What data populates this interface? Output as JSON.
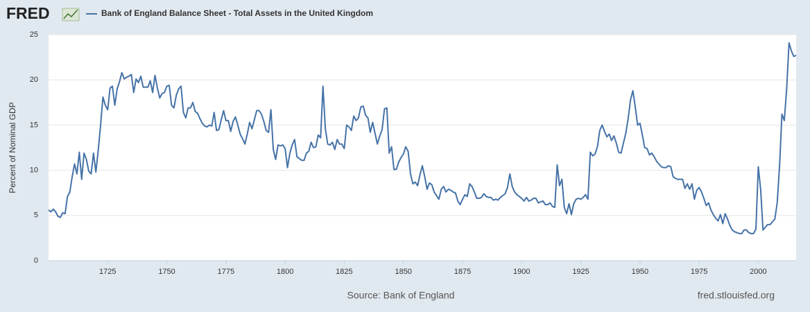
{
  "logo": "FRED",
  "chart_data": {
    "type": "line",
    "ylabel": "Percent of Nominal GDP",
    "source": "Source: Bank of England",
    "credit": "fred.stlouisfed.org",
    "x": [
      1700,
      1701,
      1702,
      1703,
      1704,
      1705,
      1706,
      1707,
      1708,
      1709,
      1710,
      1711,
      1712,
      1713,
      1714,
      1715,
      1716,
      1717,
      1718,
      1719,
      1720,
      1721,
      1722,
      1723,
      1724,
      1725,
      1726,
      1727,
      1728,
      1729,
      1730,
      1731,
      1732,
      1733,
      1734,
      1735,
      1736,
      1737,
      1738,
      1739,
      1740,
      1741,
      1742,
      1743,
      1744,
      1745,
      1746,
      1747,
      1748,
      1749,
      1750,
      1751,
      1752,
      1753,
      1754,
      1755,
      1756,
      1757,
      1758,
      1759,
      1760,
      1761,
      1762,
      1763,
      1764,
      1765,
      1766,
      1767,
      1768,
      1769,
      1770,
      1771,
      1772,
      1773,
      1774,
      1775,
      1776,
      1777,
      1778,
      1779,
      1780,
      1781,
      1782,
      1783,
      1784,
      1785,
      1786,
      1787,
      1788,
      1789,
      1790,
      1791,
      1792,
      1793,
      1794,
      1795,
      1796,
      1797,
      1798,
      1799,
      1800,
      1801,
      1802,
      1803,
      1804,
      1805,
      1806,
      1807,
      1808,
      1809,
      1810,
      1811,
      1812,
      1813,
      1814,
      1815,
      1816,
      1817,
      1818,
      1819,
      1820,
      1821,
      1822,
      1823,
      1824,
      1825,
      1826,
      1827,
      1828,
      1829,
      1830,
      1831,
      1832,
      1833,
      1834,
      1835,
      1836,
      1837,
      1838,
      1839,
      1840,
      1841,
      1842,
      1843,
      1844,
      1845,
      1846,
      1847,
      1848,
      1849,
      1850,
      1851,
      1852,
      1853,
      1854,
      1855,
      1856,
      1857,
      1858,
      1859,
      1860,
      1861,
      1862,
      1863,
      1864,
      1865,
      1866,
      1867,
      1868,
      1869,
      1870,
      1871,
      1872,
      1873,
      1874,
      1875,
      1876,
      1877,
      1878,
      1879,
      1880,
      1881,
      1882,
      1883,
      1884,
      1885,
      1886,
      1887,
      1888,
      1889,
      1890,
      1891,
      1892,
      1893,
      1894,
      1895,
      1896,
      1897,
      1898,
      1899,
      1900,
      1901,
      1902,
      1903,
      1904,
      1905,
      1906,
      1907,
      1908,
      1909,
      1910,
      1911,
      1912,
      1913,
      1914,
      1915,
      1916,
      1917,
      1918,
      1919,
      1920,
      1921,
      1922,
      1923,
      1924,
      1925,
      1926,
      1927,
      1928,
      1929,
      1930,
      1931,
      1932,
      1933,
      1934,
      1935,
      1936,
      1937,
      1938,
      1939,
      1940,
      1941,
      1942,
      1943,
      1944,
      1945,
      1946,
      1947,
      1948,
      1949,
      1950,
      1951,
      1952,
      1953,
      1954,
      1955,
      1956,
      1957,
      1958,
      1959,
      1960,
      1961,
      1962,
      1963,
      1964,
      1965,
      1966,
      1967,
      1968,
      1969,
      1970,
      1971,
      1972,
      1973,
      1974,
      1975,
      1976,
      1977,
      1978,
      1979,
      1980,
      1981,
      1982,
      1983,
      1984,
      1985,
      1986,
      1987,
      1988,
      1989,
      1990,
      1991,
      1992,
      1993,
      1994,
      1995,
      1996,
      1997,
      1998,
      1999,
      2000,
      2001,
      2002,
      2003,
      2004,
      2005,
      2006,
      2007,
      2008,
      2009,
      2010,
      2011,
      2012,
      2013,
      2014,
      2015,
      2016
    ],
    "series": [
      {
        "name": "Bank of England Balance Sheet - Total Assets in the United Kingdom",
        "color": "#4572a7",
        "values": [
          5.6,
          5.4,
          5.7,
          5.4,
          4.9,
          4.8,
          5.3,
          5.2,
          7.1,
          7.6,
          9.3,
          10.7,
          9.6,
          12.0,
          9.0,
          11.9,
          11.2,
          9.9,
          9.6,
          11.9,
          9.8,
          12.2,
          15.0,
          18.1,
          17.2,
          16.7,
          19.1,
          19.3,
          17.2,
          19.0,
          19.8,
          20.8,
          20.1,
          20.3,
          20.4,
          20.6,
          18.6,
          20.1,
          19.7,
          20.4,
          19.2,
          19.2,
          19.2,
          19.9,
          18.6,
          20.5,
          19.1,
          18.0,
          18.5,
          18.6,
          19.3,
          19.4,
          17.2,
          16.9,
          18.3,
          19.0,
          19.3,
          16.4,
          15.8,
          16.9,
          16.9,
          17.5,
          16.5,
          16.3,
          15.7,
          15.2,
          14.9,
          14.8,
          15.0,
          14.9,
          16.4,
          14.4,
          14.5,
          15.6,
          16.6,
          15.5,
          15.5,
          14.3,
          15.4,
          15.9,
          15.0,
          14.0,
          13.5,
          12.9,
          14.0,
          15.3,
          14.6,
          15.6,
          16.6,
          16.6,
          16.2,
          15.4,
          14.4,
          14.2,
          16.7,
          12.3,
          11.2,
          12.8,
          12.7,
          12.8,
          12.4,
          10.3,
          11.9,
          12.8,
          13.4,
          11.5,
          11.3,
          11.1,
          11.1,
          11.9,
          12.1,
          13.1,
          12.5,
          12.6,
          13.9,
          13.6,
          19.3,
          14.6,
          12.9,
          12.8,
          13.1,
          12.3,
          13.4,
          12.9,
          12.9,
          12.4,
          15.0,
          14.8,
          14.4,
          16.0,
          15.5,
          15.8,
          17.0,
          17.1,
          16.1,
          15.8,
          14.2,
          15.3,
          14.1,
          12.9,
          13.8,
          14.5,
          16.8,
          16.9,
          11.9,
          12.6,
          10.1,
          10.1,
          10.9,
          11.4,
          11.8,
          12.6,
          12.1,
          9.6,
          8.5,
          8.7,
          8.3,
          9.5,
          10.5,
          9.3,
          7.9,
          8.6,
          8.4,
          7.6,
          7.2,
          6.8,
          7.9,
          8.2,
          7.6,
          7.9,
          7.8,
          7.6,
          7.5,
          6.6,
          6.2,
          6.8,
          7.3,
          7.1,
          8.5,
          8.2,
          7.6,
          6.9,
          6.9,
          7.0,
          7.4,
          7.1,
          7.0,
          7.0,
          6.7,
          6.8,
          6.7,
          7.0,
          7.2,
          7.4,
          8.1,
          9.6,
          8.2,
          7.6,
          7.3,
          7.1,
          6.9,
          6.6,
          7.0,
          6.6,
          6.7,
          6.9,
          6.9,
          6.4,
          6.5,
          6.6,
          6.2,
          6.2,
          6.4,
          6.0,
          5.9,
          10.6,
          8.3,
          9.0,
          5.9,
          5.2,
          6.3,
          5.1,
          6.3,
          6.8,
          6.9,
          6.8,
          7.0,
          7.3,
          6.8,
          12.0,
          11.6,
          11.8,
          12.6,
          14.4,
          15.0,
          14.3,
          13.7,
          14.0,
          13.3,
          13.8,
          13.0,
          12.0,
          11.9,
          13.0,
          14.1,
          15.7,
          17.8,
          18.8,
          17.0,
          15.0,
          15.2,
          13.9,
          12.5,
          12.4,
          11.7,
          11.9,
          11.5,
          11.0,
          10.7,
          10.4,
          10.3,
          10.3,
          10.5,
          10.4,
          9.3,
          9.1,
          9.0,
          9.0,
          9.0,
          8.0,
          8.5,
          7.9,
          8.5,
          6.8,
          7.8,
          8.1,
          7.6,
          6.9,
          6.1,
          6.4,
          5.6,
          5.1,
          4.7,
          4.4,
          5.1,
          4.1,
          5.2,
          4.6,
          3.9,
          3.4,
          3.2,
          3.1,
          3.0,
          3.0,
          3.4,
          3.4,
          3.1,
          3.0,
          3.0,
          3.5,
          10.4,
          7.9,
          3.4,
          3.7,
          4.0,
          4.0,
          4.3,
          4.6,
          6.4,
          10.5,
          16.2,
          15.5,
          19.0,
          24.1,
          23.2,
          22.6,
          22.7
        ]
      }
    ],
    "xlim": [
      1700,
      2016
    ],
    "xticks": [
      1725,
      1750,
      1775,
      1800,
      1825,
      1850,
      1875,
      1900,
      1925,
      1950,
      1975,
      2000
    ],
    "ylim": [
      0,
      25
    ],
    "yticks": [
      0,
      5,
      10,
      15,
      20,
      25
    ],
    "grid": true
  }
}
